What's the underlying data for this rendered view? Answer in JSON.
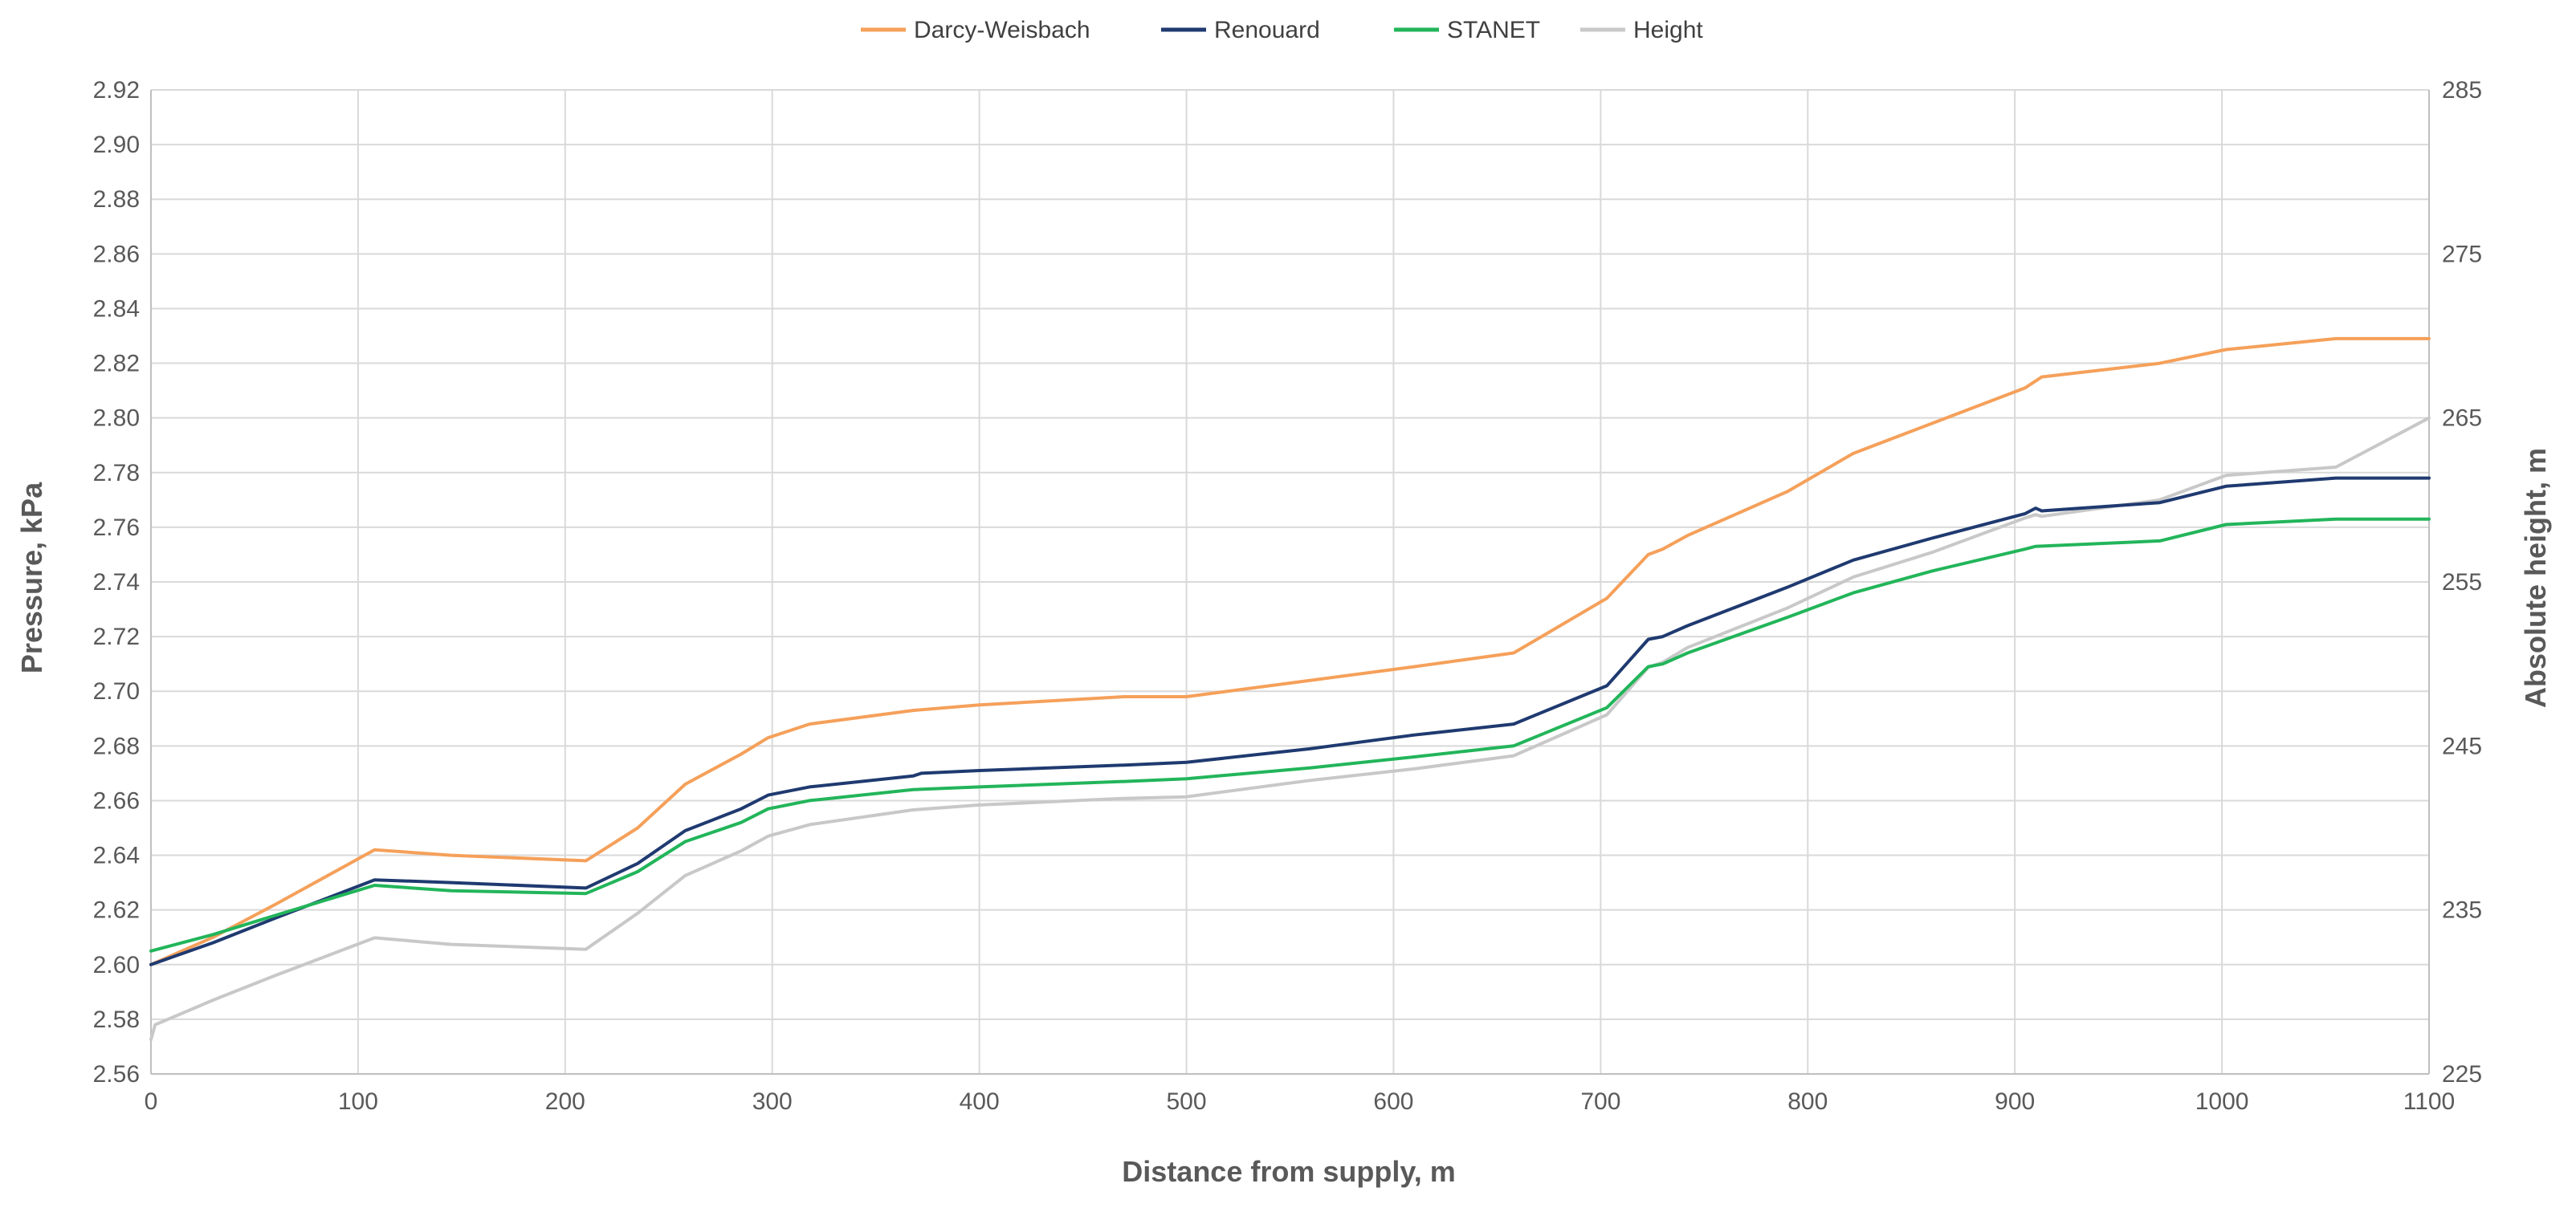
{
  "chart_data": {
    "type": "line",
    "title": "",
    "xlabel": "Distance from supply, m",
    "ylabel_left": "Pressure, kPa",
    "ylabel_right": "Absolute height, m",
    "xlim": [
      0,
      1100
    ],
    "ylim_left": [
      2.56,
      2.92
    ],
    "ylim_right": [
      225,
      285
    ],
    "x_ticks": [
      0,
      100,
      200,
      300,
      400,
      500,
      600,
      700,
      800,
      900,
      1000,
      1100
    ],
    "y_left_ticks": [
      "2.56",
      "2.58",
      "2.60",
      "2.62",
      "2.64",
      "2.66",
      "2.68",
      "2.70",
      "2.72",
      "2.74",
      "2.76",
      "2.78",
      "2.80",
      "2.82",
      "2.84",
      "2.86",
      "2.88",
      "2.90",
      "2.92"
    ],
    "y_right_ticks": [
      225,
      235,
      245,
      255,
      265,
      275,
      285
    ],
    "grid": true,
    "legend_position": "top-center",
    "series": [
      {
        "name": "Darcy-Weisbach",
        "axis": "left",
        "color": "#f5a05a",
        "points": [
          [
            0,
            2.6
          ],
          [
            30,
            2.61
          ],
          [
            60,
            2.622
          ],
          [
            108,
            2.642
          ],
          [
            145,
            2.64
          ],
          [
            210,
            2.638
          ],
          [
            235,
            2.65
          ],
          [
            258,
            2.666
          ],
          [
            285,
            2.677
          ],
          [
            298,
            2.683
          ],
          [
            318,
            2.688
          ],
          [
            368,
            2.693
          ],
          [
            400,
            2.695
          ],
          [
            470,
            2.698
          ],
          [
            500,
            2.698
          ],
          [
            560,
            2.704
          ],
          [
            610,
            2.709
          ],
          [
            658,
            2.714
          ],
          [
            703,
            2.734
          ],
          [
            723,
            2.75
          ],
          [
            730,
            2.752
          ],
          [
            742,
            2.757
          ],
          [
            790,
            2.773
          ],
          [
            822,
            2.787
          ],
          [
            860,
            2.798
          ],
          [
            905,
            2.811
          ],
          [
            913,
            2.815
          ],
          [
            970,
            2.82
          ],
          [
            1002,
            2.825
          ],
          [
            1055,
            2.829
          ],
          [
            1100,
            2.829
          ]
        ]
      },
      {
        "name": "Renouard",
        "axis": "left",
        "color": "#1f3a70",
        "points": [
          [
            0,
            2.6
          ],
          [
            30,
            2.608
          ],
          [
            60,
            2.617
          ],
          [
            108,
            2.631
          ],
          [
            145,
            2.63
          ],
          [
            210,
            2.628
          ],
          [
            235,
            2.637
          ],
          [
            258,
            2.649
          ],
          [
            285,
            2.657
          ],
          [
            298,
            2.662
          ],
          [
            318,
            2.665
          ],
          [
            368,
            2.669
          ],
          [
            372,
            2.67
          ],
          [
            400,
            2.671
          ],
          [
            470,
            2.673
          ],
          [
            500,
            2.674
          ],
          [
            560,
            2.679
          ],
          [
            610,
            2.684
          ],
          [
            658,
            2.688
          ],
          [
            703,
            2.702
          ],
          [
            723,
            2.719
          ],
          [
            730,
            2.72
          ],
          [
            742,
            2.724
          ],
          [
            790,
            2.738
          ],
          [
            822,
            2.748
          ],
          [
            860,
            2.756
          ],
          [
            905,
            2.765
          ],
          [
            910,
            2.767
          ],
          [
            913,
            2.766
          ],
          [
            970,
            2.769
          ],
          [
            1002,
            2.775
          ],
          [
            1055,
            2.778
          ],
          [
            1100,
            2.778
          ]
        ]
      },
      {
        "name": "STANET",
        "axis": "left",
        "color": "#22b55a",
        "points": [
          [
            0,
            2.605
          ],
          [
            30,
            2.611
          ],
          [
            60,
            2.618
          ],
          [
            108,
            2.629
          ],
          [
            145,
            2.627
          ],
          [
            210,
            2.626
          ],
          [
            235,
            2.634
          ],
          [
            258,
            2.645
          ],
          [
            285,
            2.652
          ],
          [
            298,
            2.657
          ],
          [
            318,
            2.66
          ],
          [
            368,
            2.664
          ],
          [
            400,
            2.665
          ],
          [
            470,
            2.667
          ],
          [
            500,
            2.668
          ],
          [
            560,
            2.672
          ],
          [
            610,
            2.676
          ],
          [
            658,
            2.68
          ],
          [
            703,
            2.694
          ],
          [
            723,
            2.709
          ],
          [
            730,
            2.71
          ],
          [
            742,
            2.714
          ],
          [
            790,
            2.727
          ],
          [
            822,
            2.736
          ],
          [
            860,
            2.744
          ],
          [
            905,
            2.752
          ],
          [
            910,
            2.753
          ],
          [
            970,
            2.755
          ],
          [
            1002,
            2.761
          ],
          [
            1055,
            2.763
          ],
          [
            1100,
            2.763
          ]
        ]
      },
      {
        "name": "Height",
        "axis": "right",
        "color": "#c8c8c8",
        "points": [
          [
            0,
            227.1
          ],
          [
            2,
            228.0
          ],
          [
            30,
            229.5
          ],
          [
            60,
            231.0
          ],
          [
            108,
            233.3
          ],
          [
            145,
            232.9
          ],
          [
            210,
            232.6
          ],
          [
            235,
            234.8
          ],
          [
            258,
            237.1
          ],
          [
            285,
            238.6
          ],
          [
            298,
            239.5
          ],
          [
            318,
            240.2
          ],
          [
            368,
            241.1
          ],
          [
            400,
            241.4
          ],
          [
            470,
            241.8
          ],
          [
            500,
            241.9
          ],
          [
            560,
            242.9
          ],
          [
            610,
            243.6
          ],
          [
            658,
            244.4
          ],
          [
            703,
            246.9
          ],
          [
            723,
            249.8
          ],
          [
            730,
            250.1
          ],
          [
            742,
            251.0
          ],
          [
            790,
            253.4
          ],
          [
            822,
            255.3
          ],
          [
            860,
            256.8
          ],
          [
            905,
            258.9
          ],
          [
            910,
            259.1
          ],
          [
            913,
            259.0
          ],
          [
            970,
            260.0
          ],
          [
            1002,
            261.5
          ],
          [
            1055,
            262.0
          ],
          [
            1100,
            265.0
          ]
        ]
      }
    ]
  }
}
